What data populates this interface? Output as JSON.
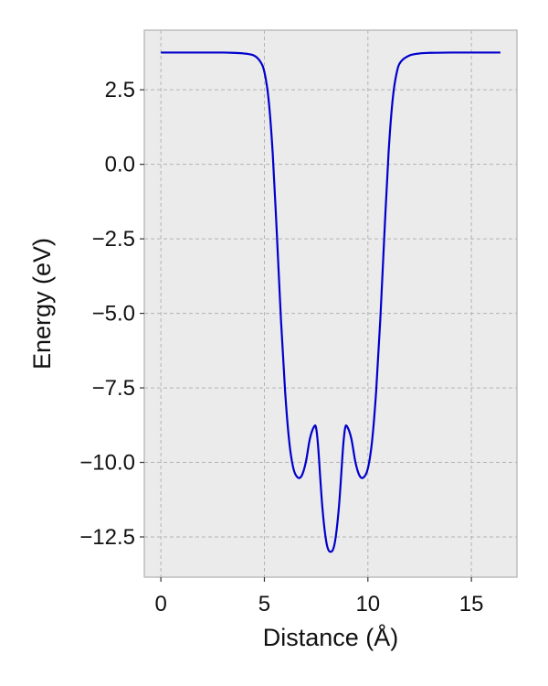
{
  "chart_data": {
    "type": "line",
    "xlabel": "Distance (Å)",
    "ylabel": "Energy (eV)",
    "xlim": [
      -0.8,
      17.2
    ],
    "ylim": [
      -13.85,
      4.5
    ],
    "xticks": [
      0,
      5,
      10,
      15
    ],
    "xtick_labels": [
      "0",
      "5",
      "10",
      "15"
    ],
    "yticks": [
      2.5,
      0.0,
      -2.5,
      -5.0,
      -7.5,
      -10.0,
      -12.5
    ],
    "ytick_labels": [
      "2.5",
      "0.0",
      "−2.5",
      "−5.0",
      "−7.5",
      "−10.0",
      "−12.5"
    ],
    "grid": true,
    "background": "#ebebeb",
    "series": [
      {
        "color": "#0000cc",
        "x": [
          0,
          1,
          2,
          3,
          3.5,
          4,
          4.5,
          4.8,
          5,
          5.2,
          5.4,
          5.6,
          5.8,
          6.0,
          6.2,
          6.4,
          6.6,
          6.8,
          7.0,
          7.2,
          7.4,
          7.5,
          7.6,
          7.8,
          8.0,
          8.2,
          8.4,
          8.6,
          8.8,
          8.9,
          9.0,
          9.2,
          9.4,
          9.6,
          9.8,
          10.0,
          10.2,
          10.4,
          10.6,
          10.8,
          11.0,
          11.2,
          11.4,
          11.6,
          12,
          12.5,
          13,
          14,
          15,
          16,
          16.4
        ],
        "y": [
          3.75,
          3.75,
          3.75,
          3.75,
          3.74,
          3.72,
          3.65,
          3.45,
          3.1,
          2.2,
          0.4,
          -2.3,
          -5.2,
          -7.6,
          -9.3,
          -10.2,
          -10.5,
          -10.45,
          -10.0,
          -9.2,
          -8.8,
          -8.85,
          -9.5,
          -11.5,
          -12.7,
          -13.0,
          -12.7,
          -11.5,
          -9.5,
          -8.85,
          -8.8,
          -9.2,
          -10.0,
          -10.45,
          -10.5,
          -10.2,
          -9.3,
          -7.6,
          -5.2,
          -2.3,
          0.4,
          2.2,
          3.1,
          3.45,
          3.65,
          3.72,
          3.74,
          3.75,
          3.75,
          3.75,
          3.75
        ]
      }
    ]
  }
}
